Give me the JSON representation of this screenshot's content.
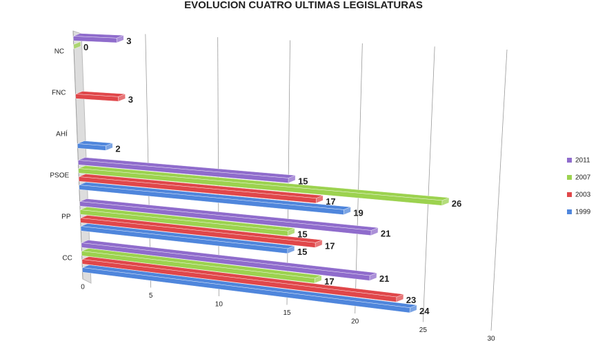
{
  "chart_data": {
    "type": "bar3d",
    "orientation": "horizontal",
    "title": "EVOLUCION CUATRO ULTIMAS LEGISLATURAS",
    "categories": [
      "CC",
      "PP",
      "PSOE",
      "AHÍ",
      "FNC",
      "NC"
    ],
    "series": [
      {
        "name": "1999",
        "color": "#4f86dc",
        "values": [
          24,
          15,
          19,
          2,
          null,
          null
        ]
      },
      {
        "name": "2003",
        "color": "#e0474a",
        "values": [
          23,
          17,
          17,
          null,
          3,
          null
        ]
      },
      {
        "name": "2007",
        "color": "#9cd24f",
        "values": [
          17,
          15,
          26,
          null,
          null,
          0
        ]
      },
      {
        "name": "2011",
        "color": "#8f6ccc",
        "values": [
          21,
          21,
          15,
          null,
          null,
          3
        ]
      }
    ],
    "xlim": [
      0,
      30
    ],
    "xticks": [
      0,
      5,
      10,
      15,
      20,
      25,
      30
    ],
    "grid": true,
    "legend": "right"
  }
}
